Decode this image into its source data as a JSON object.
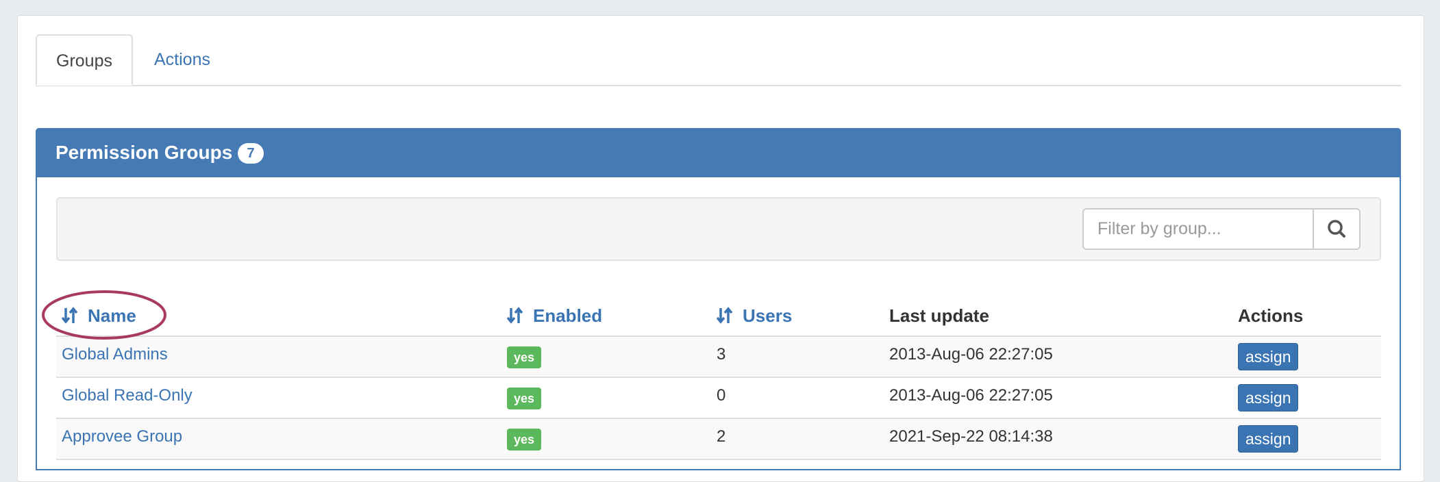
{
  "tabs": [
    {
      "label": "Groups",
      "active": true
    },
    {
      "label": "Actions",
      "active": false
    }
  ],
  "panel": {
    "title": "Permission Groups",
    "count": 7
  },
  "filter": {
    "placeholder": "Filter by group..."
  },
  "table": {
    "headers": [
      {
        "label": "Name",
        "sortable": true
      },
      {
        "label": "Enabled",
        "sortable": true
      },
      {
        "label": "Users",
        "sortable": true
      },
      {
        "label": "Last update",
        "sortable": false
      },
      {
        "label": "Actions",
        "sortable": false
      }
    ],
    "rows": [
      [
        "Global Admins",
        "yes",
        3,
        "2013-Aug-06 22:27:05",
        "assign"
      ],
      [
        "Global Read-Only",
        "yes",
        0,
        "2013-Aug-06 22:27:05",
        "assign"
      ],
      [
        "Approvee Group",
        "yes",
        2,
        "2021-Sep-22 08:14:38",
        "assign"
      ]
    ]
  }
}
